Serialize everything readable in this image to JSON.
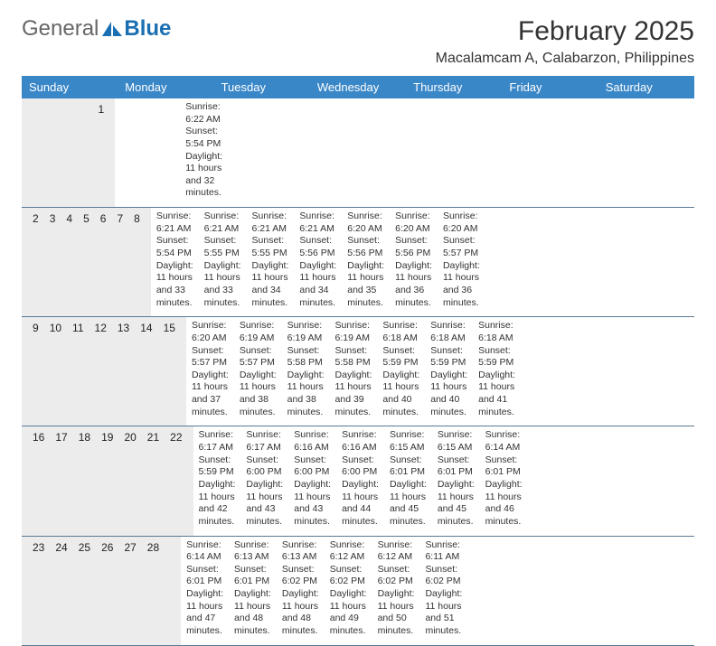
{
  "logo": {
    "text1": "General",
    "text2": "Blue"
  },
  "title": "February 2025",
  "location": "Macalamcam A, Calabarzon, Philippines",
  "colors": {
    "header_bg": "#3a87c8",
    "header_text": "#ffffff",
    "daynum_bg": "#ececec",
    "divider": "#5a7a95",
    "body_text": "#333333",
    "logo_blue": "#1a6fb3",
    "logo_gray": "#666666"
  },
  "typography": {
    "title_fontsize": 30,
    "location_fontsize": 16,
    "dayheader_fontsize": 13,
    "daynum_fontsize": 12,
    "cell_fontsize": 10.5
  },
  "day_names": [
    "Sunday",
    "Monday",
    "Tuesday",
    "Wednesday",
    "Thursday",
    "Friday",
    "Saturday"
  ],
  "weeks": [
    {
      "nums": [
        "",
        "",
        "",
        "",
        "",
        "",
        "1"
      ],
      "cells": [
        null,
        null,
        null,
        null,
        null,
        null,
        {
          "sunrise": "Sunrise: 6:22 AM",
          "sunset": "Sunset: 5:54 PM",
          "daylight": "Daylight: 11 hours and 32 minutes."
        }
      ]
    },
    {
      "nums": [
        "2",
        "3",
        "4",
        "5",
        "6",
        "7",
        "8"
      ],
      "cells": [
        {
          "sunrise": "Sunrise: 6:21 AM",
          "sunset": "Sunset: 5:54 PM",
          "daylight": "Daylight: 11 hours and 33 minutes."
        },
        {
          "sunrise": "Sunrise: 6:21 AM",
          "sunset": "Sunset: 5:55 PM",
          "daylight": "Daylight: 11 hours and 33 minutes."
        },
        {
          "sunrise": "Sunrise: 6:21 AM",
          "sunset": "Sunset: 5:55 PM",
          "daylight": "Daylight: 11 hours and 34 minutes."
        },
        {
          "sunrise": "Sunrise: 6:21 AM",
          "sunset": "Sunset: 5:56 PM",
          "daylight": "Daylight: 11 hours and 34 minutes."
        },
        {
          "sunrise": "Sunrise: 6:20 AM",
          "sunset": "Sunset: 5:56 PM",
          "daylight": "Daylight: 11 hours and 35 minutes."
        },
        {
          "sunrise": "Sunrise: 6:20 AM",
          "sunset": "Sunset: 5:56 PM",
          "daylight": "Daylight: 11 hours and 36 minutes."
        },
        {
          "sunrise": "Sunrise: 6:20 AM",
          "sunset": "Sunset: 5:57 PM",
          "daylight": "Daylight: 11 hours and 36 minutes."
        }
      ]
    },
    {
      "nums": [
        "9",
        "10",
        "11",
        "12",
        "13",
        "14",
        "15"
      ],
      "cells": [
        {
          "sunrise": "Sunrise: 6:20 AM",
          "sunset": "Sunset: 5:57 PM",
          "daylight": "Daylight: 11 hours and 37 minutes."
        },
        {
          "sunrise": "Sunrise: 6:19 AM",
          "sunset": "Sunset: 5:57 PM",
          "daylight": "Daylight: 11 hours and 38 minutes."
        },
        {
          "sunrise": "Sunrise: 6:19 AM",
          "sunset": "Sunset: 5:58 PM",
          "daylight": "Daylight: 11 hours and 38 minutes."
        },
        {
          "sunrise": "Sunrise: 6:19 AM",
          "sunset": "Sunset: 5:58 PM",
          "daylight": "Daylight: 11 hours and 39 minutes."
        },
        {
          "sunrise": "Sunrise: 6:18 AM",
          "sunset": "Sunset: 5:59 PM",
          "daylight": "Daylight: 11 hours and 40 minutes."
        },
        {
          "sunrise": "Sunrise: 6:18 AM",
          "sunset": "Sunset: 5:59 PM",
          "daylight": "Daylight: 11 hours and 40 minutes."
        },
        {
          "sunrise": "Sunrise: 6:18 AM",
          "sunset": "Sunset: 5:59 PM",
          "daylight": "Daylight: 11 hours and 41 minutes."
        }
      ]
    },
    {
      "nums": [
        "16",
        "17",
        "18",
        "19",
        "20",
        "21",
        "22"
      ],
      "cells": [
        {
          "sunrise": "Sunrise: 6:17 AM",
          "sunset": "Sunset: 5:59 PM",
          "daylight": "Daylight: 11 hours and 42 minutes."
        },
        {
          "sunrise": "Sunrise: 6:17 AM",
          "sunset": "Sunset: 6:00 PM",
          "daylight": "Daylight: 11 hours and 43 minutes."
        },
        {
          "sunrise": "Sunrise: 6:16 AM",
          "sunset": "Sunset: 6:00 PM",
          "daylight": "Daylight: 11 hours and 43 minutes."
        },
        {
          "sunrise": "Sunrise: 6:16 AM",
          "sunset": "Sunset: 6:00 PM",
          "daylight": "Daylight: 11 hours and 44 minutes."
        },
        {
          "sunrise": "Sunrise: 6:15 AM",
          "sunset": "Sunset: 6:01 PM",
          "daylight": "Daylight: 11 hours and 45 minutes."
        },
        {
          "sunrise": "Sunrise: 6:15 AM",
          "sunset": "Sunset: 6:01 PM",
          "daylight": "Daylight: 11 hours and 45 minutes."
        },
        {
          "sunrise": "Sunrise: 6:14 AM",
          "sunset": "Sunset: 6:01 PM",
          "daylight": "Daylight: 11 hours and 46 minutes."
        }
      ]
    },
    {
      "nums": [
        "23",
        "24",
        "25",
        "26",
        "27",
        "28",
        ""
      ],
      "cells": [
        {
          "sunrise": "Sunrise: 6:14 AM",
          "sunset": "Sunset: 6:01 PM",
          "daylight": "Daylight: 11 hours and 47 minutes."
        },
        {
          "sunrise": "Sunrise: 6:13 AM",
          "sunset": "Sunset: 6:01 PM",
          "daylight": "Daylight: 11 hours and 48 minutes."
        },
        {
          "sunrise": "Sunrise: 6:13 AM",
          "sunset": "Sunset: 6:02 PM",
          "daylight": "Daylight: 11 hours and 48 minutes."
        },
        {
          "sunrise": "Sunrise: 6:12 AM",
          "sunset": "Sunset: 6:02 PM",
          "daylight": "Daylight: 11 hours and 49 minutes."
        },
        {
          "sunrise": "Sunrise: 6:12 AM",
          "sunset": "Sunset: 6:02 PM",
          "daylight": "Daylight: 11 hours and 50 minutes."
        },
        {
          "sunrise": "Sunrise: 6:11 AM",
          "sunset": "Sunset: 6:02 PM",
          "daylight": "Daylight: 11 hours and 51 minutes."
        },
        null
      ]
    }
  ]
}
